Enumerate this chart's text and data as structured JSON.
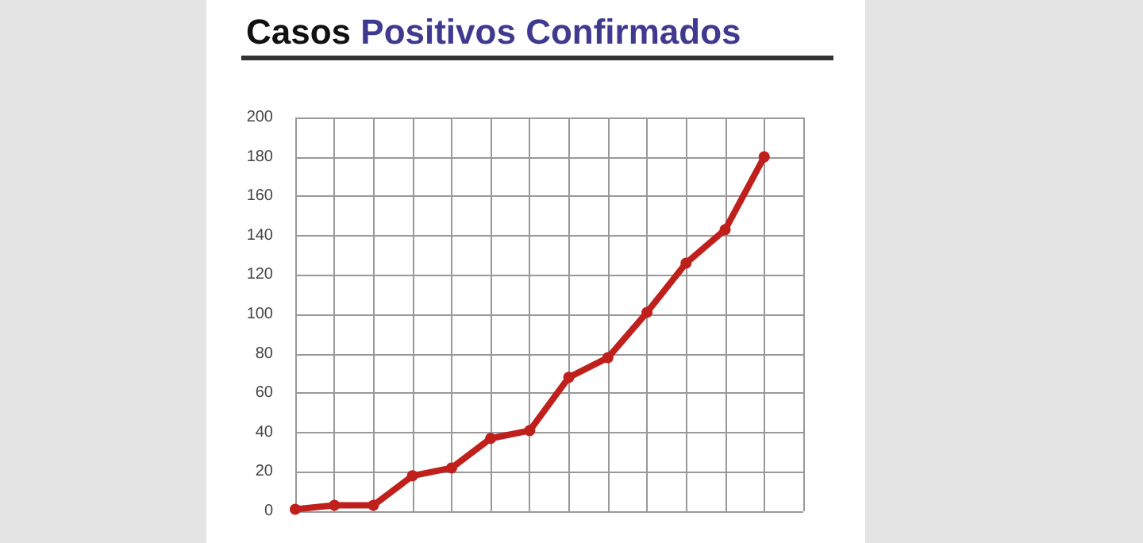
{
  "chart_data": {
    "type": "line",
    "title": "Casos Positivos Confirmados",
    "categories": [
      null,
      null,
      null,
      null,
      null,
      null,
      null,
      null,
      null,
      null,
      null,
      null,
      null,
      null
    ],
    "series": [
      {
        "color": "#c0201c",
        "values": [
          1,
          3,
          3,
          18,
          22,
          37,
          41,
          68,
          78,
          101,
          126,
          143,
          180,
          null
        ]
      }
    ],
    "ylim": [
      0,
      200
    ],
    "yticks": [
      0,
      20,
      40,
      60,
      80,
      100,
      120,
      140,
      160,
      180,
      200
    ],
    "grid": true,
    "marker": "circle",
    "line_style": "solid"
  }
}
